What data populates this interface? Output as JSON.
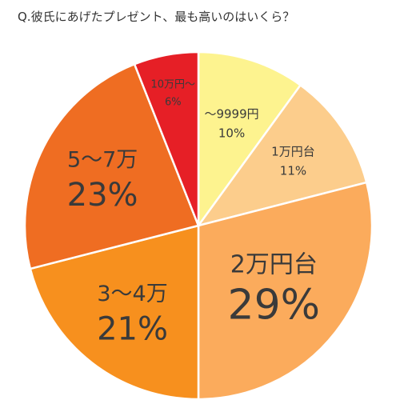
{
  "chart_data": {
    "type": "pie",
    "title": "Q.彼氏にあげたプレゼント、最も高いのはいくら？",
    "slices": [
      {
        "label": "～9999円",
        "value": 10,
        "value_label": "10%",
        "color": "#fdf38f"
      },
      {
        "label": "1万円台",
        "value": 11,
        "value_label": "11%",
        "color": "#fccd8c"
      },
      {
        "label": "2万円台",
        "value": 29,
        "value_label": "29%",
        "color": "#fbab5c"
      },
      {
        "label": "3～4万",
        "value": 21,
        "value_label": "21%",
        "color": "#f7901e"
      },
      {
        "label": "5～7万",
        "value": 23,
        "value_label": "23%",
        "color": "#ef6d22"
      },
      {
        "label": "10万円～",
        "value": 6,
        "value_label": "6%",
        "color": "#e61f26"
      }
    ],
    "start": "12 o'clock",
    "direction": "clockwise",
    "legend": "none"
  }
}
